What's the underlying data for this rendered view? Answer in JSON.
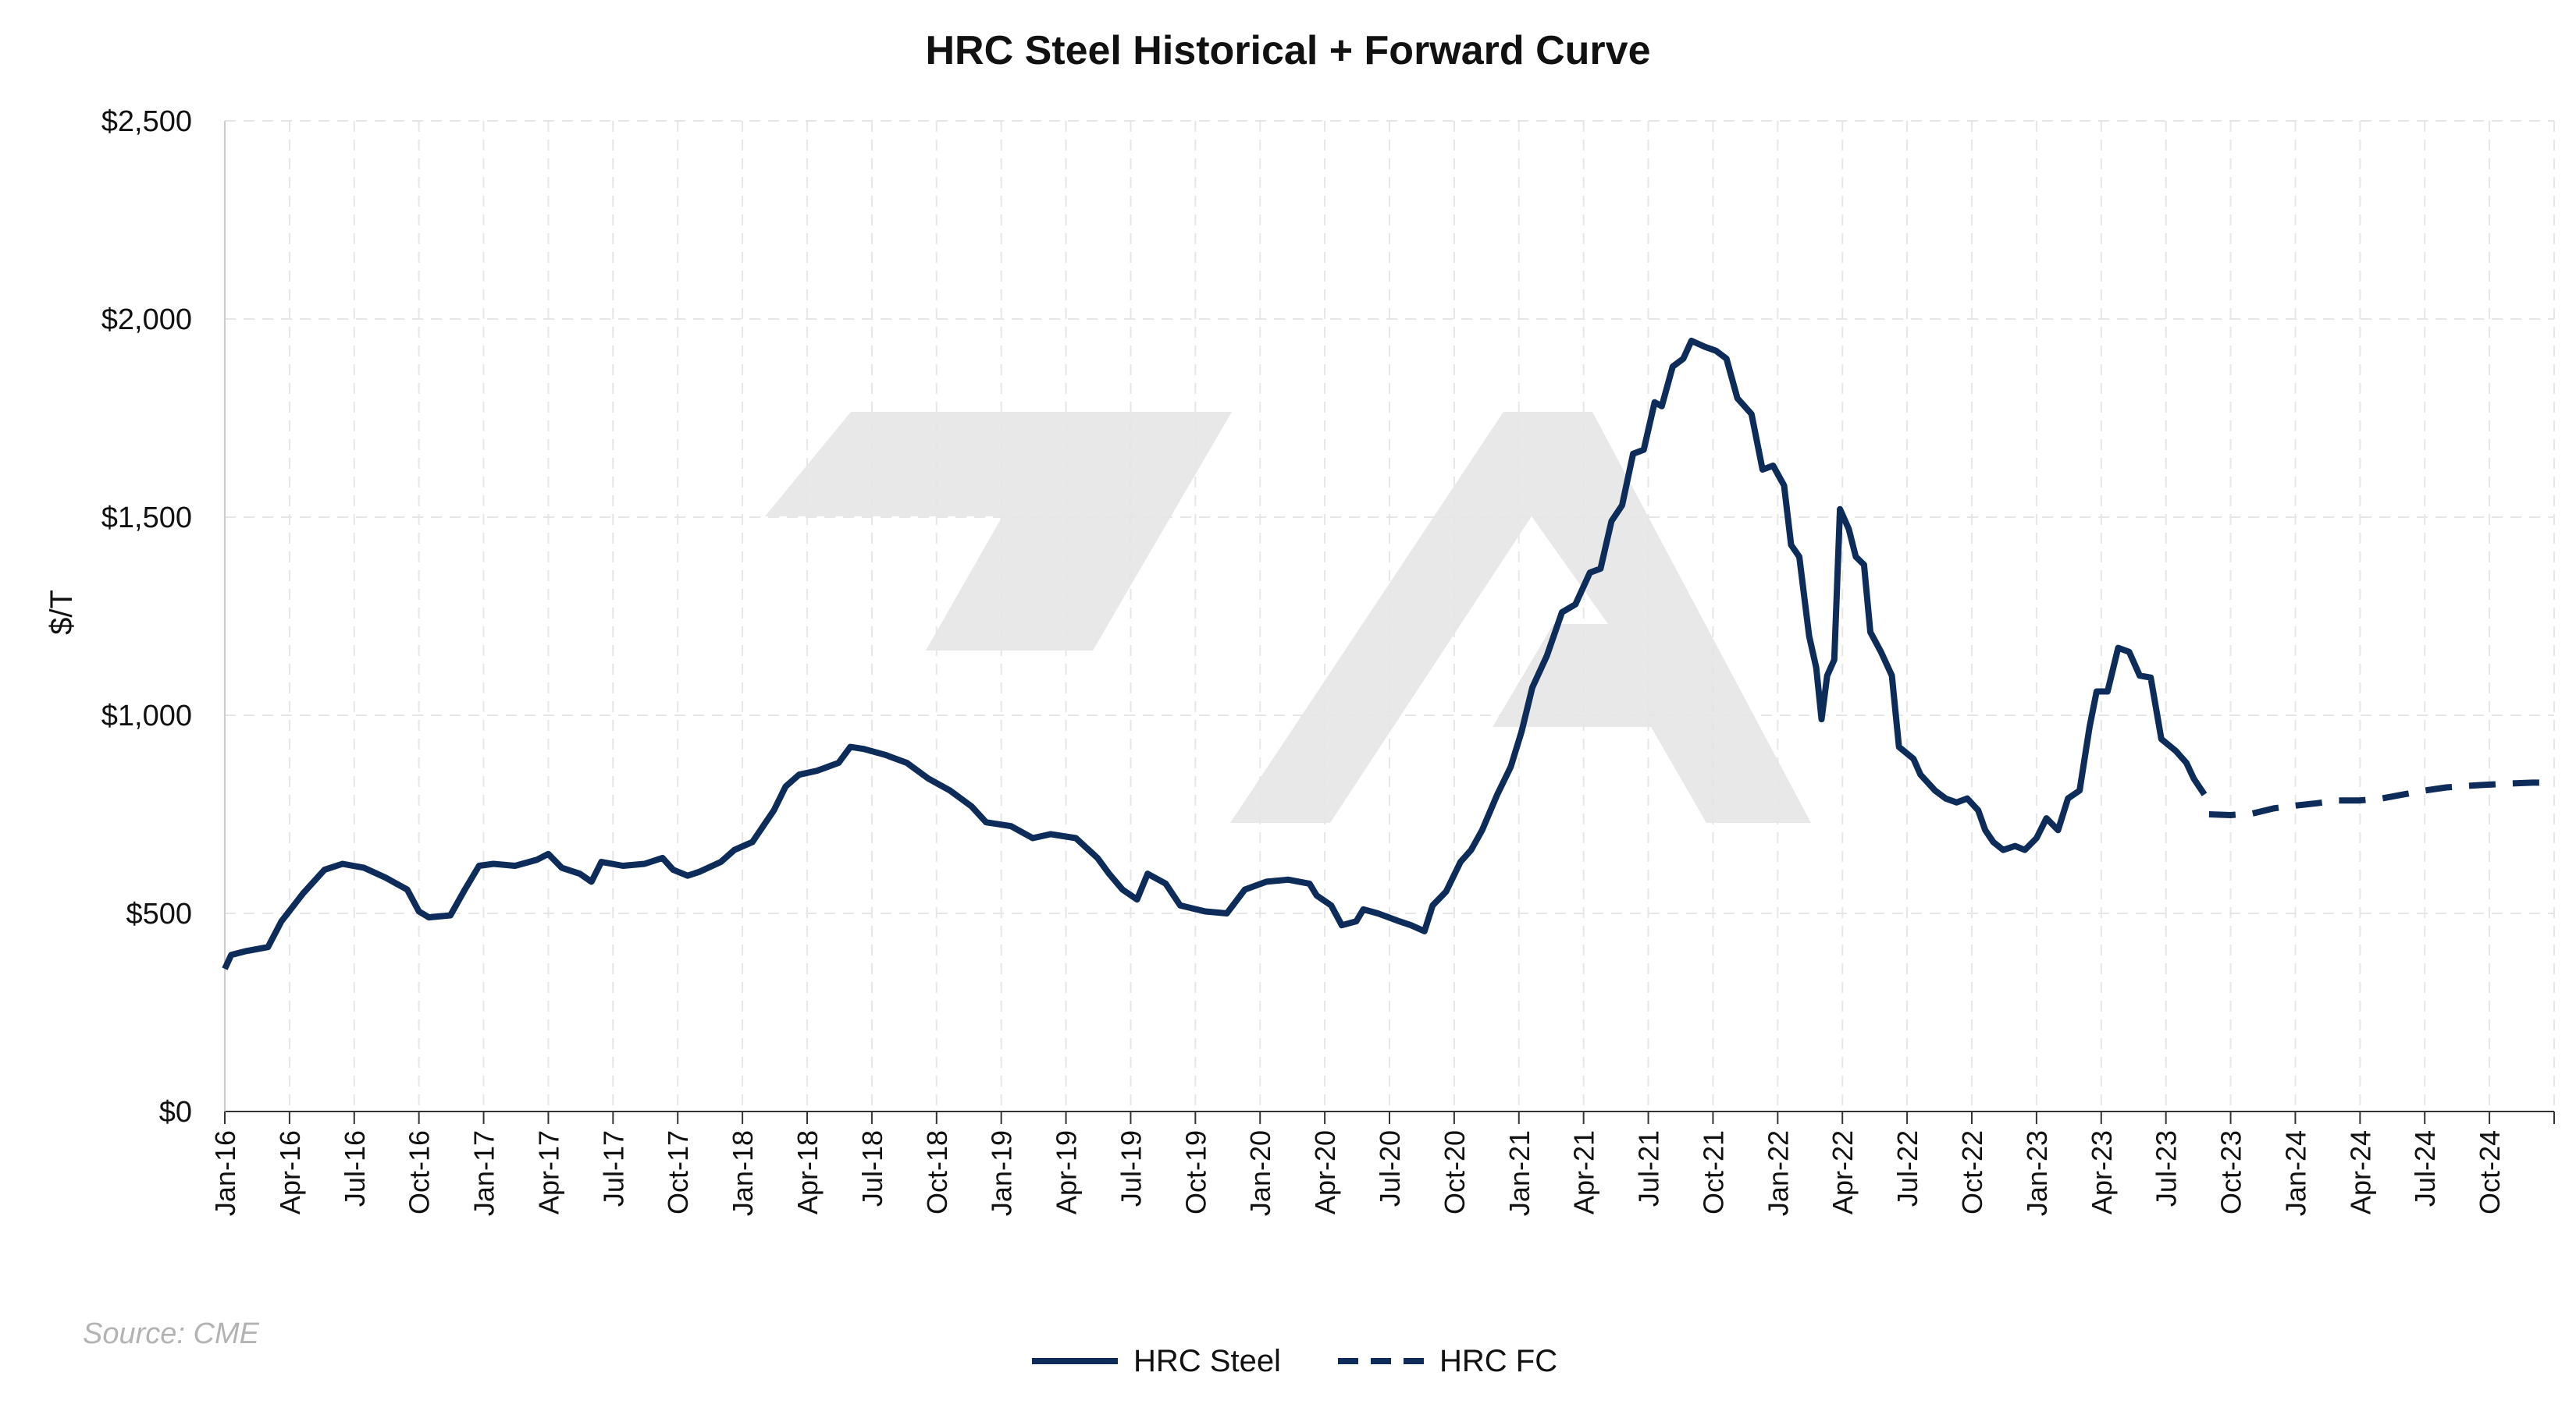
{
  "chart_data": {
    "type": "line",
    "title": "HRC Steel Historical + Forward Curve",
    "ylabel": "$/T",
    "xlabel": "",
    "source_note": "Source: CME",
    "ylim": [
      0,
      2500
    ],
    "xlim": [
      "2016-01",
      "2025-01"
    ],
    "y_ticks": [
      "$0",
      "$500",
      "$1,000",
      "$1,500",
      "$2,000",
      "$2,500"
    ],
    "y_tick_values": [
      0,
      500,
      1000,
      1500,
      2000,
      2500
    ],
    "x_ticks": [
      "Jan-16",
      "Apr-16",
      "Jul-16",
      "Oct-16",
      "Jan-17",
      "Apr-17",
      "Jul-17",
      "Oct-17",
      "Jan-18",
      "Apr-18",
      "Jul-18",
      "Oct-18",
      "Jan-19",
      "Apr-19",
      "Jul-19",
      "Oct-19",
      "Jan-20",
      "Apr-20",
      "Jul-20",
      "Oct-20",
      "Jan-21",
      "Apr-21",
      "Jul-21",
      "Oct-21",
      "Jan-22",
      "Apr-22",
      "Jul-22",
      "Oct-22",
      "Jan-23",
      "Apr-23",
      "Jul-23",
      "Oct-23",
      "Jan-24",
      "Apr-24",
      "Jul-24",
      "Oct-24"
    ],
    "grid": true,
    "legend_position": "bottom-center",
    "colors": {
      "line": "#0d2c5a",
      "grid": "#e6e6e6",
      "watermark": "#e8e8e8"
    },
    "series": [
      {
        "name": "HRC Steel",
        "style": "solid",
        "points": [
          [
            "2016-01-01",
            360
          ],
          [
            "2016-01-10",
            395
          ],
          [
            "2016-02-01",
            405
          ],
          [
            "2016-03-01",
            415
          ],
          [
            "2016-03-20",
            480
          ],
          [
            "2016-04-20",
            550
          ],
          [
            "2016-05-20",
            610
          ],
          [
            "2016-06-15",
            625
          ],
          [
            "2016-07-15",
            615
          ],
          [
            "2016-08-15",
            590
          ],
          [
            "2016-09-15",
            560
          ],
          [
            "2016-10-01",
            505
          ],
          [
            "2016-10-15",
            490
          ],
          [
            "2016-11-15",
            495
          ],
          [
            "2016-12-05",
            560
          ],
          [
            "2016-12-25",
            620
          ],
          [
            "2017-01-15",
            625
          ],
          [
            "2017-02-15",
            620
          ],
          [
            "2017-03-15",
            635
          ],
          [
            "2017-04-01",
            650
          ],
          [
            "2017-04-20",
            615
          ],
          [
            "2017-05-15",
            600
          ],
          [
            "2017-06-01",
            580
          ],
          [
            "2017-06-15",
            630
          ],
          [
            "2017-07-15",
            620
          ],
          [
            "2017-08-15",
            625
          ],
          [
            "2017-09-10",
            640
          ],
          [
            "2017-09-25",
            610
          ],
          [
            "2017-10-15",
            595
          ],
          [
            "2017-11-01",
            605
          ],
          [
            "2017-12-01",
            630
          ],
          [
            "2017-12-20",
            660
          ],
          [
            "2018-01-15",
            680
          ],
          [
            "2018-02-15",
            760
          ],
          [
            "2018-03-01",
            820
          ],
          [
            "2018-03-20",
            850
          ],
          [
            "2018-04-15",
            860
          ],
          [
            "2018-05-15",
            880
          ],
          [
            "2018-06-01",
            920
          ],
          [
            "2018-06-20",
            915
          ],
          [
            "2018-07-20",
            900
          ],
          [
            "2018-08-20",
            880
          ],
          [
            "2018-09-20",
            840
          ],
          [
            "2018-10-20",
            810
          ],
          [
            "2018-11-20",
            770
          ],
          [
            "2018-12-10",
            730
          ],
          [
            "2019-01-15",
            720
          ],
          [
            "2019-02-15",
            690
          ],
          [
            "2019-03-10",
            700
          ],
          [
            "2019-04-15",
            690
          ],
          [
            "2019-05-15",
            640
          ],
          [
            "2019-06-01",
            600
          ],
          [
            "2019-06-20",
            560
          ],
          [
            "2019-07-10",
            535
          ],
          [
            "2019-07-25",
            600
          ],
          [
            "2019-08-20",
            575
          ],
          [
            "2019-09-10",
            520
          ],
          [
            "2019-10-15",
            505
          ],
          [
            "2019-11-15",
            500
          ],
          [
            "2019-12-10",
            560
          ],
          [
            "2020-01-10",
            580
          ],
          [
            "2020-02-10",
            585
          ],
          [
            "2020-03-10",
            575
          ],
          [
            "2020-03-20",
            545
          ],
          [
            "2020-04-10",
            520
          ],
          [
            "2020-04-25",
            470
          ],
          [
            "2020-05-15",
            480
          ],
          [
            "2020-05-25",
            510
          ],
          [
            "2020-06-15",
            500
          ],
          [
            "2020-07-15",
            480
          ],
          [
            "2020-08-01",
            470
          ],
          [
            "2020-08-20",
            455
          ],
          [
            "2020-09-01",
            520
          ],
          [
            "2020-09-20",
            555
          ],
          [
            "2020-10-10",
            630
          ],
          [
            "2020-10-25",
            660
          ],
          [
            "2020-11-10",
            710
          ],
          [
            "2020-12-01",
            800
          ],
          [
            "2020-12-20",
            870
          ],
          [
            "2021-01-05",
            960
          ],
          [
            "2021-01-20",
            1070
          ],
          [
            "2021-02-10",
            1150
          ],
          [
            "2021-03-01",
            1260
          ],
          [
            "2021-03-20",
            1280
          ],
          [
            "2021-04-10",
            1360
          ],
          [
            "2021-04-25",
            1370
          ],
          [
            "2021-05-10",
            1490
          ],
          [
            "2021-05-25",
            1530
          ],
          [
            "2021-06-10",
            1660
          ],
          [
            "2021-06-25",
            1670
          ],
          [
            "2021-07-10",
            1790
          ],
          [
            "2021-07-20",
            1780
          ],
          [
            "2021-08-05",
            1880
          ],
          [
            "2021-08-20",
            1900
          ],
          [
            "2021-09-01",
            1945
          ],
          [
            "2021-09-20",
            1930
          ],
          [
            "2021-10-05",
            1920
          ],
          [
            "2021-10-20",
            1900
          ],
          [
            "2021-11-05",
            1800
          ],
          [
            "2021-11-25",
            1760
          ],
          [
            "2021-12-10",
            1620
          ],
          [
            "2021-12-25",
            1630
          ],
          [
            "2022-01-10",
            1580
          ],
          [
            "2022-01-20",
            1430
          ],
          [
            "2022-02-01",
            1400
          ],
          [
            "2022-02-15",
            1200
          ],
          [
            "2022-02-25",
            1120
          ],
          [
            "2022-03-02",
            990
          ],
          [
            "2022-03-10",
            1100
          ],
          [
            "2022-03-20",
            1140
          ],
          [
            "2022-03-28",
            1520
          ],
          [
            "2022-04-10",
            1470
          ],
          [
            "2022-04-20",
            1400
          ],
          [
            "2022-05-01",
            1380
          ],
          [
            "2022-05-10",
            1210
          ],
          [
            "2022-05-25",
            1160
          ],
          [
            "2022-06-10",
            1100
          ],
          [
            "2022-06-20",
            920
          ],
          [
            "2022-07-10",
            890
          ],
          [
            "2022-07-20",
            850
          ],
          [
            "2022-08-10",
            810
          ],
          [
            "2022-08-25",
            790
          ],
          [
            "2022-09-10",
            780
          ],
          [
            "2022-09-25",
            790
          ],
          [
            "2022-10-10",
            760
          ],
          [
            "2022-10-20",
            710
          ],
          [
            "2022-11-01",
            680
          ],
          [
            "2022-11-15",
            660
          ],
          [
            "2022-12-01",
            670
          ],
          [
            "2022-12-15",
            660
          ],
          [
            "2023-01-01",
            690
          ],
          [
            "2023-01-15",
            740
          ],
          [
            "2023-02-01",
            710
          ],
          [
            "2023-02-15",
            790
          ],
          [
            "2023-03-01",
            810
          ],
          [
            "2023-03-15",
            970
          ],
          [
            "2023-03-25",
            1060
          ],
          [
            "2023-04-10",
            1060
          ],
          [
            "2023-04-25",
            1170
          ],
          [
            "2023-05-10",
            1160
          ],
          [
            "2023-05-25",
            1100
          ],
          [
            "2023-06-10",
            1095
          ],
          [
            "2023-06-25",
            940
          ],
          [
            "2023-07-15",
            910
          ],
          [
            "2023-07-30",
            880
          ],
          [
            "2023-08-10",
            840
          ],
          [
            "2023-08-25",
            800
          ]
        ]
      },
      {
        "name": "HRC FC",
        "style": "dashed",
        "points": [
          [
            "2023-09-01",
            750
          ],
          [
            "2023-10-01",
            748
          ],
          [
            "2023-11-01",
            752
          ],
          [
            "2023-12-01",
            765
          ],
          [
            "2024-01-01",
            772
          ],
          [
            "2024-02-01",
            778
          ],
          [
            "2024-03-01",
            785
          ],
          [
            "2024-04-01",
            785
          ],
          [
            "2024-05-01",
            790
          ],
          [
            "2024-06-01",
            800
          ],
          [
            "2024-07-01",
            810
          ],
          [
            "2024-08-01",
            818
          ],
          [
            "2024-09-01",
            822
          ],
          [
            "2024-10-01",
            825
          ],
          [
            "2024-11-01",
            828
          ],
          [
            "2024-12-01",
            830
          ],
          [
            "2024-12-31",
            830
          ]
        ]
      }
    ]
  }
}
